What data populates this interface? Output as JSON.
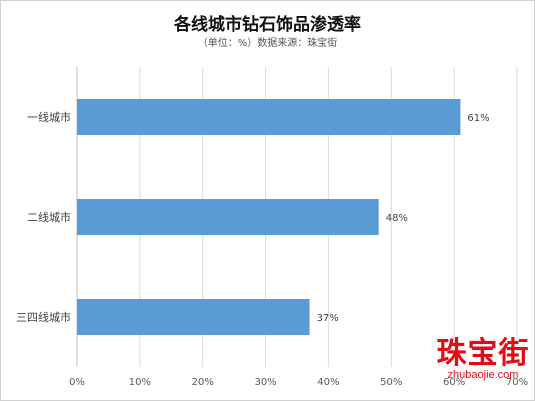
{
  "chart_data": {
    "type": "bar",
    "orientation": "horizontal",
    "title": "各线城市钻石饰品渗透率",
    "subtitle": "（单位：%）数据来源：珠宝街",
    "categories": [
      "一线城市",
      "二线城市",
      "三四线城市"
    ],
    "values": [
      61,
      48,
      37
    ],
    "value_labels": [
      "61%",
      "48%",
      "37%"
    ],
    "xlim": [
      0,
      70
    ],
    "xticks": [
      0,
      10,
      20,
      30,
      40,
      50,
      60,
      70
    ],
    "xtick_labels": [
      "0%",
      "10%",
      "20%",
      "30%",
      "40%",
      "50%",
      "60%",
      "70%"
    ],
    "grid": "vertical",
    "bar_color": "#5b9bd5"
  },
  "watermark": {
    "main": "珠宝街",
    "url": "zhubaojie.com",
    "color": "#e30c14"
  }
}
